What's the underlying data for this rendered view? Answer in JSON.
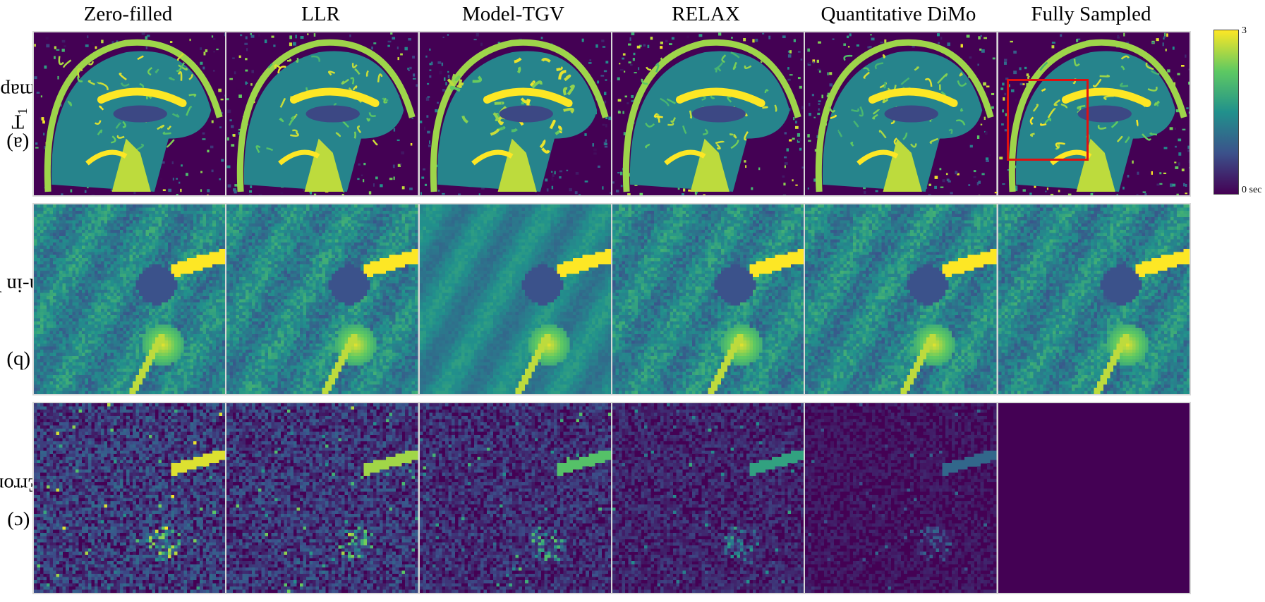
{
  "columns": [
    "Zero-filled",
    "LLR",
    "Model-TGV",
    "RELAX",
    "Quantitative DiMo",
    "Fully Sampled"
  ],
  "rows": [
    {
      "prefix": "(a)",
      "main": "T",
      "sub": "1",
      "suffix": " map"
    },
    {
      "prefix": "(b)",
      "main": "Zoom-in View",
      "sub": "",
      "suffix": ""
    },
    {
      "prefix": "(c)",
      "main": "Error",
      "sub": "",
      "suffix": ""
    }
  ],
  "colorbar": {
    "max_label": "3",
    "min_label": "0 sec"
  },
  "colors": {
    "viridis_low": "#440154",
    "viridis_mid": "#21918c",
    "viridis_high": "#fde725",
    "zoom_box": "#e01010"
  }
}
